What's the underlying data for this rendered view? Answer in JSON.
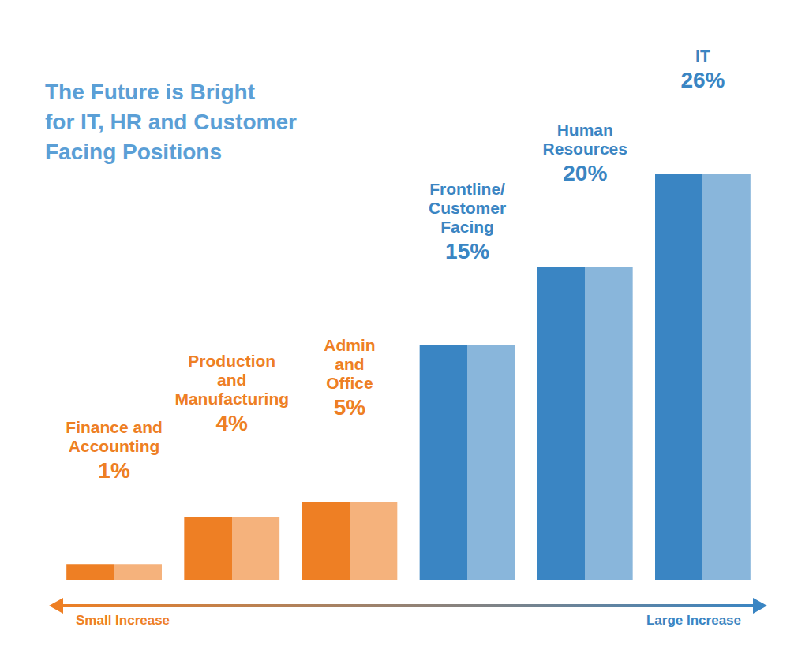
{
  "chart_data": {
    "type": "bar",
    "title": "The Future is Bright\nfor IT, HR and Customer\nFacing Positions",
    "categories": [
      "Finance and\nAccounting",
      "Production\nand\nManufacturing",
      "Admin\nand\nOffice",
      "Frontline/\nCustomer\nFacing",
      "Human\nResources",
      "IT"
    ],
    "values": [
      1,
      4,
      5,
      15,
      20,
      26
    ],
    "value_labels": [
      "1%",
      "4%",
      "5%",
      "15%",
      "20%",
      "26%"
    ],
    "colors": [
      "#ee7f24",
      "#ee7f24",
      "#ee7f24",
      "#3a85c3",
      "#3a85c3",
      "#3a85c3"
    ],
    "ylim": [
      0,
      26
    ],
    "data_labels": true,
    "tick_labels": false,
    "grid": false,
    "annotations": [
      "Small Increase",
      "Large Increase"
    ]
  }
}
